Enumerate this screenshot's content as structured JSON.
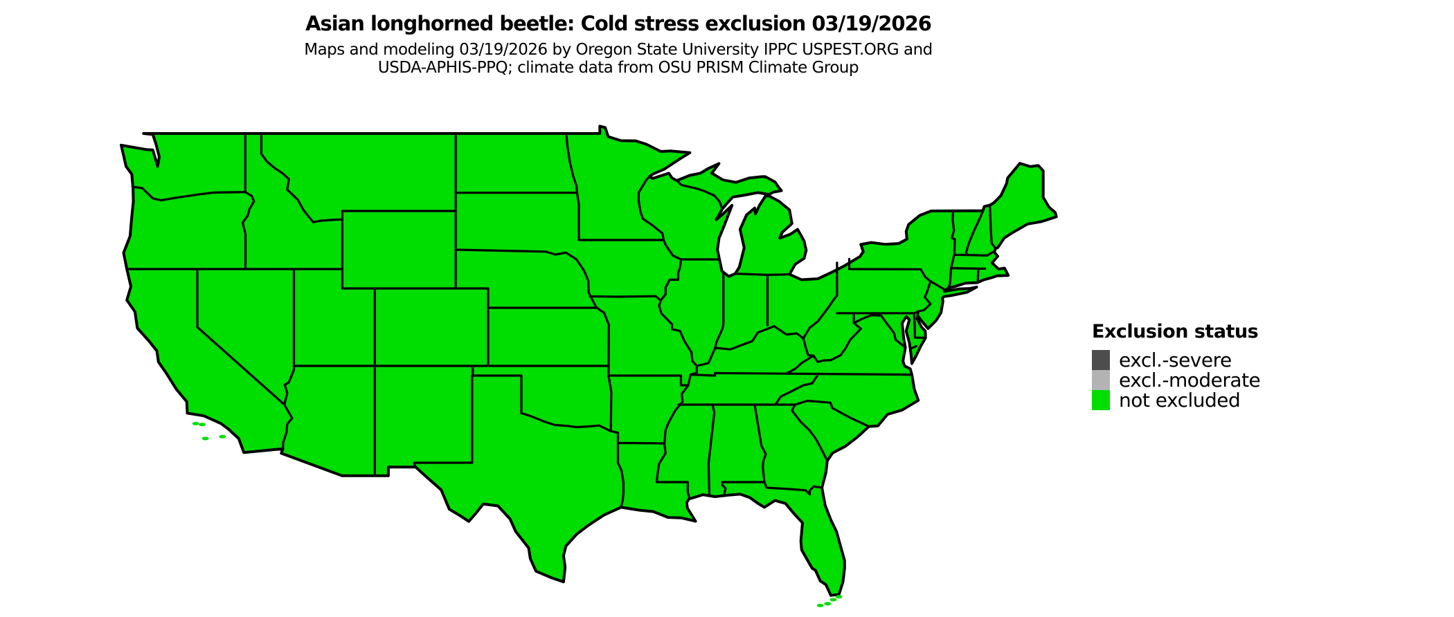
{
  "title": "Asian longhorned beetle: Cold stress exclusion 03/19/2026",
  "subtitle": {
    "line1": "Maps and modeling 03/19/2026 by Oregon State University IPPC USPEST.ORG and",
    "line2": "USDA-APHIS-PPQ; climate data from OSU PRISM Climate Group"
  },
  "legend": {
    "title": "Exclusion status",
    "items": [
      {
        "label": "excl.-severe",
        "color": "#4d4d4d"
      },
      {
        "label": "excl.-moderate",
        "color": "#b3b3b3"
      },
      {
        "label": "not excluded",
        "color": "#00dd00"
      }
    ]
  },
  "map": {
    "region": "Continental United States",
    "status_all_states": "not excluded",
    "fill_color": "#00dd00",
    "border_color": "#000000",
    "background_color": "#ffffff"
  },
  "chart_data": {
    "type": "choropleth-map",
    "title": "Asian longhorned beetle: Cold stress exclusion 03/19/2026",
    "region": "Continental United States",
    "date_shown": "03/19/2026",
    "classes": [
      "excl.-severe",
      "excl.-moderate",
      "not excluded"
    ],
    "class_colors": [
      "#4d4d4d",
      "#b3b3b3",
      "#00dd00"
    ],
    "value_for_all_visible_states": "not excluded",
    "legend_position": "right"
  }
}
